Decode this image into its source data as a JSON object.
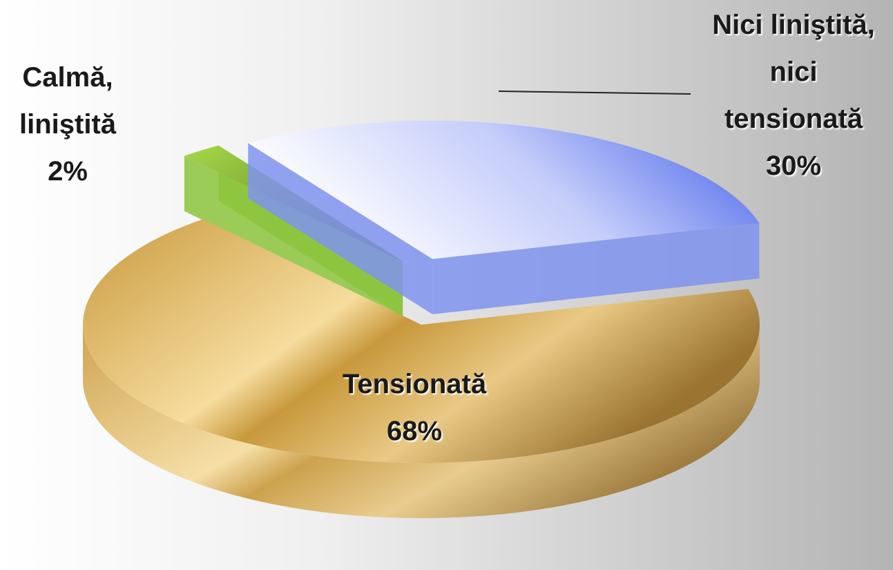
{
  "chart_data": {
    "type": "pie",
    "categories": [
      "Tensionată",
      "Calmă, liniştită",
      "Nici liniştită, nici tensionată"
    ],
    "values": [
      68,
      2,
      30
    ],
    "value_labels": [
      "68%",
      "2%",
      "30%"
    ],
    "colors": [
      "#d8ae55",
      "#8cc43c",
      "#7f93ef"
    ]
  }
}
